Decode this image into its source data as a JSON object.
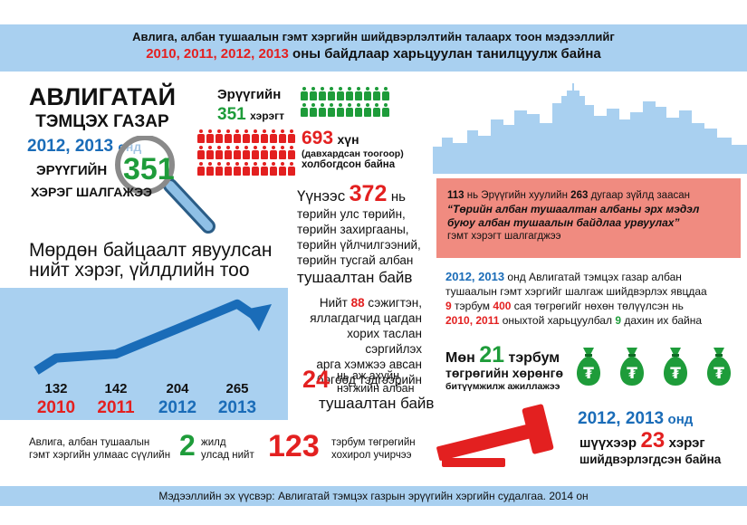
{
  "header": {
    "line1": "Авлига, албан тушаалын гэмт хэргийн шийдвэрлэлтийн талаарх тоон мэдээллийг",
    "years": "2010, 2011, 2012, 2013",
    "line2_rest": "оны байдлаар харьцуулан танилцуулж байна"
  },
  "agency": {
    "l1": "АВЛИГАТАЙ",
    "l2": "ТЭМЦЭХ ГАЗАР",
    "years": "2012, 2013",
    "onд": "онд",
    "l4": "ЭРҮҮГИЙН",
    "num": "351",
    "l5": "ХЭРЭГ ШАЛГАЖЭЭ"
  },
  "criminal": {
    "label": "Эрүүгийн",
    "num": "351",
    "unit": "хэрэгт",
    "people_num": "693",
    "people_unit": "хүн",
    "note1": "(давхардсан тоогоор)",
    "note2": "холбогдсон байна"
  },
  "officials": {
    "prefix": "Үүнээс",
    "num": "372",
    "suffix": "нь",
    "l2": "төрийн улс төрийн,",
    "l3": "төрийн захиргааны,",
    "l4": "төрийн үйлчилгээний,",
    "l5": "төрийн тусгай албан",
    "l6": "тушаалтан байв"
  },
  "law": {
    "a1": "113",
    "a2": "нь Эрүүгийн хуулийн",
    "a3": "263",
    "a4": "дугаар зүйлд заасан",
    "q1": "“Төрийн албан тушаалтан албаны эрх мэдэл",
    "q2": "буюу албан тушаалын байдлаа урвуулах”",
    "tail": "гэмт хэрэгт шалгагджээ"
  },
  "investigation": {
    "l1": "Мөрдөн байцаалт явуулсан",
    "l2": "нийт хэрэг, үйлдлийн тоо"
  },
  "chart_data": {
    "type": "bar",
    "categories": [
      "2010",
      "2011",
      "2012",
      "2013"
    ],
    "values": [
      132,
      142,
      204,
      265
    ]
  },
  "prosecutors": {
    "l1a": "Нийт",
    "l1n": "88",
    "l1b": "сэжигтэн,",
    "l2": "яллагдагчид цагдан",
    "l3": "хорих таслан сэргийлэх",
    "l4": "арга хэмжээ авсан",
    "l5": "бөгөөд тэдгээрийн",
    "num": "24",
    "l6a": "нь аж ахуйн",
    "l6b": "нэгжийн албан",
    "l7": "тушаалтан байв"
  },
  "compare": {
    "years": "2012, 2013",
    "r1": "онд Авлигатай тэмцэх газар албан",
    "r2": "тушаалын гэмт хэргийг шалгаж шийдвэрлэх явцдаа",
    "n9": "9",
    "r3a": "тэрбум",
    "n400": "400",
    "r3b": "сая төгрөгийг нөхөн төлүүлсэн нь",
    "y": "2010, 2011",
    "r4a": "оныхтой харьцуулбал",
    "n9b": "9",
    "r4b": "дахин их байна"
  },
  "assets": {
    "l1a": "Мөн",
    "num": "21",
    "l1b": "тэрбум",
    "l2": "төгрөгийн хөрөнгө",
    "l3": "битүүмжилж ажиллажээ",
    "bag_symbol": "₮"
  },
  "court": {
    "years": "2012, 2013",
    "onд": "онд",
    "l2a": "шүүхээр",
    "num": "23",
    "l2b": "хэрэг",
    "l3": "шийдвэрлэгдсэн байна"
  },
  "damage": {
    "l1": "Авлига, албан тушаалын",
    "l2": "гэмт хэргийн улмаас сүүлийн",
    "num": "2",
    "u1": "жилд",
    "u2": "улсад нийт",
    "big": "123",
    "d1": "тэрбум төгрөгийн",
    "d2": "хохирол учирчээ"
  },
  "footer": {
    "source": "Мэдээллийн эх үүсвэр: Авлигатай тэмцэх газрын эрүүгийн хэргийн судалгаа. 2014 он"
  },
  "colors": {
    "blue": "#1a6cb8",
    "red": "#e32020",
    "green": "#1e9c3a",
    "light_blue": "#a9d0f0",
    "pink": "#f08b80"
  },
  "icons": [
    "magnifier-icon",
    "person-icon",
    "city-skyline-icon",
    "money-bag-icon",
    "gavel-icon",
    "trend-arrow-icon"
  ]
}
